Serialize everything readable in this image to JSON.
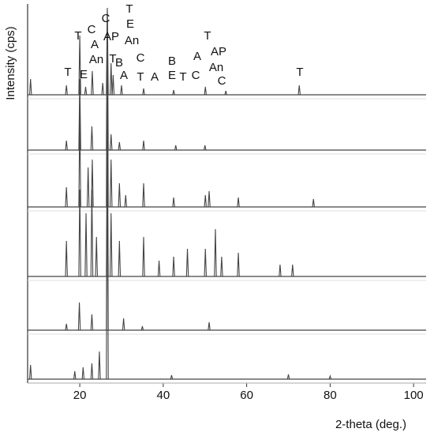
{
  "chart_data": {
    "type": "spectrum",
    "xlabel": "2-theta (deg.)",
    "ylabel": "Intensity (cps)",
    "xlim": [
      7.5,
      103
    ],
    "xticks": [
      20,
      40,
      60,
      80,
      100
    ],
    "color": "#444",
    "series": [
      {
        "x": [
          8.2,
          16.8,
          20.0,
          21.4,
          23.0,
          25.5,
          26.6,
          27.5,
          28.0,
          30.0,
          35.3,
          42.5,
          50.1,
          55.0,
          72.6
        ],
        "values": [
          20,
          12,
          75,
          10,
          30,
          15,
          110,
          40,
          25,
          12,
          8,
          6,
          10,
          5,
          12
        ]
      },
      {
        "x": [
          16.8,
          20.0,
          22.9,
          26.6,
          27.5,
          29.5,
          35.3,
          43.0,
          50.0
        ],
        "values": [
          12,
          90,
          30,
          170,
          20,
          10,
          12,
          6,
          6
        ]
      },
      {
        "x": [
          16.8,
          20.0,
          22.0,
          23.0,
          26.6,
          27.5,
          29.5,
          31.0,
          35.3,
          42.5,
          50.1,
          51.0,
          58.0,
          76.0
        ],
        "values": [
          25,
          120,
          50,
          60,
          250,
          60,
          30,
          15,
          30,
          12,
          15,
          20,
          12,
          10
        ]
      },
      {
        "x": [
          16.8,
          20.0,
          21.5,
          22.9,
          24.0,
          26.6,
          27.5,
          29.5,
          35.3,
          39.0,
          42.5,
          45.8,
          50.1,
          52.5,
          54.0,
          58.0,
          68.0,
          71.0
        ],
        "values": [
          45,
          110,
          80,
          110,
          50,
          170,
          80,
          45,
          50,
          20,
          25,
          35,
          35,
          60,
          25,
          30,
          15,
          15
        ]
      },
      {
        "x": [
          16.8,
          19.9,
          22.9,
          26.6,
          30.5,
          35.0,
          51.0
        ],
        "values": [
          8,
          35,
          20,
          290,
          15,
          5,
          10
        ]
      },
      {
        "x": [
          8.2,
          18.8,
          20.8,
          22.9,
          24.7,
          26.6,
          42.0,
          70.0,
          80.0
        ],
        "values": [
          18,
          10,
          15,
          20,
          35,
          330,
          5,
          6,
          4
        ]
      }
    ],
    "annotations": [
      "T",
      "E",
      "T",
      "C",
      "A",
      "An",
      "C",
      "AP",
      "T",
      "B",
      "T",
      "E",
      "An",
      "C",
      "T",
      "A",
      "A",
      "B",
      "E",
      "T",
      "A",
      "C",
      "T",
      "AP",
      "An",
      "C",
      "T"
    ]
  }
}
